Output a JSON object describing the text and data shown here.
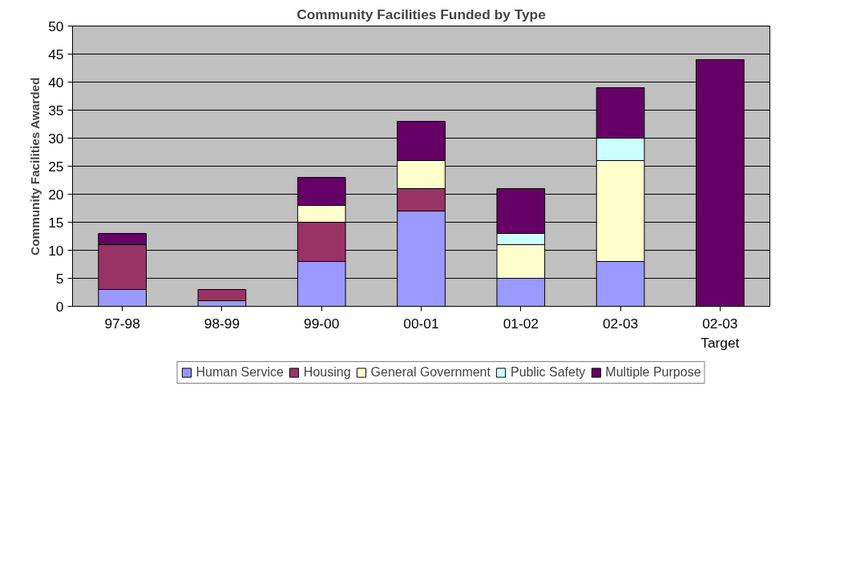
{
  "chart_data": {
    "type": "bar",
    "stacked": true,
    "title": "Community Facilities Funded by Type",
    "ylabel": "Community Facilities Awarded",
    "categories": [
      "97-98",
      "98-99",
      "99-00",
      "00-01",
      "01-02",
      "02-03",
      "02-03\nTarget"
    ],
    "series": [
      {
        "name": "Human Service",
        "color": "#9999ff",
        "values": [
          3,
          1,
          8,
          17,
          5,
          8,
          0
        ]
      },
      {
        "name": "Housing",
        "color": "#993366",
        "values": [
          8,
          2,
          7,
          4,
          0,
          0,
          0
        ]
      },
      {
        "name": "General Government",
        "color": "#ffffcc",
        "values": [
          0,
          0,
          3,
          5,
          6,
          18,
          0
        ]
      },
      {
        "name": "Public Safety",
        "color": "#ccffff",
        "values": [
          0,
          0,
          0,
          0,
          2,
          4,
          0
        ]
      },
      {
        "name": "Multiple Purpose",
        "color": "#660066",
        "values": [
          2,
          0,
          5,
          7,
          8,
          9,
          44
        ]
      }
    ],
    "ylim": [
      0,
      50
    ],
    "yticks": [
      0,
      5,
      10,
      15,
      20,
      25,
      30,
      35,
      40,
      45,
      50
    ],
    "grid": "y",
    "legend": "bottom"
  }
}
